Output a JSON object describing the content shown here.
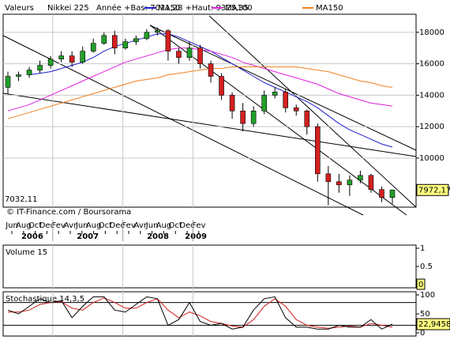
{
  "chart_data": {
    "type": "candlestick",
    "header": {
      "label": "Valeurs",
      "name": "Nikkei 225",
      "range": "Année +Bas: 7021,28 +Haut: 9325,35"
    },
    "xaxis": [
      {
        "year": "2006",
        "months": [
          "Jun",
          "Aug",
          "Oct",
          "Dec"
        ]
      },
      {
        "year": "2007",
        "months": [
          "Fev",
          "Avr",
          "Jun",
          "Aug",
          "Oct",
          "Dec"
        ]
      },
      {
        "year": "2008",
        "months": [
          "Fev",
          "Avr",
          "Jun",
          "Aug",
          "Oct",
          "Dec"
        ]
      },
      {
        "year": "2009",
        "months": [
          "Fev"
        ]
      }
    ],
    "ylim": [
      6880,
      19150
    ],
    "yticks": [
      10000,
      12000,
      14000,
      16000,
      18000
    ],
    "open": [
      14500,
      15200,
      15300,
      15600,
      15900,
      16300,
      16500,
      16100,
      16800,
      17300,
      17800,
      17000,
      17400,
      17600,
      18000,
      18100,
      16800,
      16400,
      17000,
      16000,
      15200,
      14000,
      13000,
      12200,
      13000,
      14000,
      14200,
      13200,
      13000,
      12000,
      9000,
      8500,
      8300,
      8600,
      8900,
      8000,
      7500
    ],
    "close": [
      15200,
      15300,
      15600,
      15900,
      16300,
      16500,
      16100,
      16800,
      17300,
      17800,
      17000,
      17400,
      17600,
      18000,
      18100,
      16800,
      16400,
      17000,
      16000,
      15200,
      14000,
      13000,
      12200,
      13000,
      14000,
      14200,
      13200,
      13000,
      12000,
      9000,
      8500,
      8300,
      8600,
      8900,
      8000,
      7500,
      7972.17
    ],
    "high": [
      15500,
      15500,
      15800,
      16200,
      16500,
      16800,
      16800,
      17100,
      17600,
      18000,
      18100,
      17600,
      17800,
      18200,
      18300,
      18200,
      17000,
      17400,
      17200,
      16200,
      15400,
      14200,
      13500,
      13300,
      14300,
      14500,
      14400,
      13400,
      13100,
      12200,
      9500,
      9000,
      8900,
      9200,
      9000,
      8200,
      8000
    ],
    "low": [
      14100,
      14900,
      15100,
      15400,
      15700,
      16100,
      15800,
      16000,
      16700,
      17200,
      16600,
      16900,
      17200,
      17500,
      17800,
      16200,
      16000,
      16200,
      15700,
      14800,
      13700,
      12500,
      11700,
      12000,
      12800,
      13800,
      12900,
      12700,
      11500,
      8500,
      7000,
      7800,
      7600,
      8400,
      7800,
      7200,
      7100
    ],
    "up_color": "#22a02a",
    "down_color": "#d42020",
    "last_close_label": "7972,17",
    "low_label": "7032,11",
    "source": "© IT-Finance.com / Boursorama",
    "series": [
      {
        "name": "MA50",
        "color": "#1f1fd0",
        "values": [
          null,
          null,
          15300,
          15400,
          15500,
          15700,
          15900,
          16100,
          16400,
          16800,
          17100,
          17300,
          17500,
          17700,
          17900,
          17900,
          17700,
          17400,
          17100,
          16800,
          16400,
          16000,
          15600,
          15200,
          14800,
          14500,
          14200,
          13900,
          13600,
          13200,
          12700,
          12200,
          11800,
          11500,
          11200,
          10900,
          10700
        ]
      },
      {
        "name": "MA100",
        "color": "#e020e0",
        "values": [
          13000,
          13200,
          13400,
          13700,
          14000,
          14300,
          14600,
          14900,
          15200,
          15500,
          15800,
          16100,
          16300,
          16500,
          16700,
          16900,
          17000,
          17000,
          16900,
          16800,
          16600,
          16400,
          16100,
          15900,
          15700,
          15500,
          15300,
          15100,
          14900,
          14700,
          14400,
          14100,
          13900,
          13700,
          13500,
          13400,
          13300
        ]
      },
      {
        "name": "MA150",
        "color": "#f08020",
        "values": [
          12500,
          12700,
          12900,
          13100,
          13300,
          13500,
          13700,
          13900,
          14100,
          14300,
          14500,
          14700,
          14900,
          15000,
          15100,
          15300,
          15400,
          15500,
          15600,
          15700,
          15700,
          15800,
          15800,
          15800,
          15800,
          15800,
          15800,
          15800,
          15700,
          15600,
          15500,
          15300,
          15100,
          14900,
          14800,
          14600,
          14500
        ]
      }
    ],
    "volume": {
      "title": "Volume 15",
      "ylim": [
        0,
        1
      ],
      "yticks": [
        0,
        0.5,
        1
      ],
      "last_label": "0"
    },
    "stochastic": {
      "title": "Stochastique 14,3,5",
      "ylim": [
        0,
        100
      ],
      "yticks": [
        0,
        50,
        100
      ],
      "levels": [
        20,
        80
      ],
      "k": {
        "color": "#000000",
        "values": [
          60,
          50,
          70,
          90,
          80,
          85,
          40,
          70,
          95,
          95,
          60,
          55,
          75,
          95,
          90,
          20,
          35,
          80,
          30,
          20,
          25,
          10,
          15,
          60,
          90,
          95,
          40,
          15,
          15,
          10,
          10,
          20,
          15,
          15,
          35,
          10,
          22.9458
        ]
      },
      "d": {
        "color": "#d42020",
        "values": [
          55,
          55,
          60,
          75,
          80,
          82,
          65,
          60,
          80,
          92,
          80,
          65,
          65,
          80,
          90,
          60,
          40,
          55,
          45,
          30,
          25,
          18,
          15,
          35,
          70,
          90,
          70,
          35,
          20,
          15,
          12,
          15,
          18,
          15,
          25,
          20,
          15
        ]
      },
      "last_label": "22,9458"
    }
  }
}
